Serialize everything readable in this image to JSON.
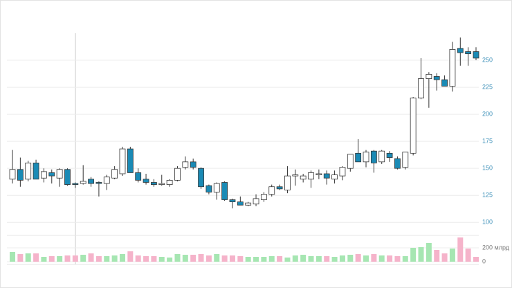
{
  "chart_data": {
    "type": "candlestick",
    "open": [
      140,
      149,
      140,
      155,
      141,
      146,
      141,
      149,
      136,
      136,
      140,
      137,
      136,
      141,
      145,
      168,
      146,
      140,
      137,
      135,
      135,
      139,
      151,
      156,
      150,
      134,
      128,
      137,
      121,
      119,
      116,
      117,
      121,
      126,
      133,
      130,
      143,
      140,
      140,
      144,
      145,
      140,
      143,
      150,
      164,
      156,
      166,
      156,
      164,
      159,
      151,
      164,
      215,
      233,
      235,
      232,
      226,
      261,
      258,
      258
    ],
    "high": [
      167,
      160,
      157,
      158,
      150,
      149,
      150,
      150,
      137,
      153,
      142,
      138,
      144,
      152,
      170,
      170,
      150,
      145,
      140,
      144,
      140,
      152,
      161,
      159,
      151,
      135,
      137,
      138,
      122,
      124,
      119,
      126,
      128,
      135,
      135,
      152,
      149,
      145,
      148,
      149,
      148,
      148,
      152,
      163,
      177,
      167,
      167,
      167,
      166,
      161,
      165,
      216,
      252,
      239,
      238,
      236,
      267,
      271,
      262,
      262
    ],
    "low": [
      136,
      133,
      138,
      141,
      137,
      136,
      133,
      134,
      132,
      135,
      133,
      124,
      130,
      140,
      143,
      146,
      137,
      135,
      133,
      134,
      133,
      138,
      149,
      149,
      131,
      126,
      121,
      120,
      113,
      116,
      115,
      115,
      119,
      124,
      130,
      127,
      134,
      137,
      132,
      140,
      135,
      136,
      139,
      147,
      156,
      151,
      146,
      154,
      156,
      149,
      149,
      162,
      214,
      206,
      222,
      226,
      221,
      245,
      245,
      250
    ],
    "close": [
      149,
      139,
      155,
      140,
      147,
      143,
      149,
      135,
      135,
      138,
      136,
      136,
      142,
      149,
      168,
      146,
      139,
      137,
      135,
      136,
      139,
      150,
      156,
      151,
      133,
      128,
      136,
      121,
      119,
      116,
      118,
      122,
      126,
      133,
      131,
      143,
      144,
      143,
      146,
      145,
      141,
      144,
      151,
      163,
      156,
      165,
      155,
      166,
      160,
      150,
      165,
      215,
      233,
      237,
      232,
      226,
      260,
      257,
      256,
      252
    ],
    "volume": [
      140,
      110,
      120,
      120,
      70,
      80,
      80,
      90,
      90,
      100,
      120,
      80,
      80,
      90,
      110,
      150,
      90,
      80,
      80,
      70,
      60,
      110,
      100,
      100,
      110,
      90,
      110,
      90,
      90,
      80,
      70,
      70,
      70,
      80,
      80,
      60,
      90,
      100,
      80,
      80,
      80,
      70,
      90,
      100,
      110,
      90,
      110,
      90,
      90,
      80,
      80,
      200,
      210,
      270,
      170,
      120,
      190,
      350,
      190,
      70
    ],
    "ylim": [
      88,
      275
    ],
    "yticks": [
      100,
      125,
      150,
      175,
      200,
      225,
      250
    ],
    "volume_lim": [
      0,
      380
    ],
    "volume_ticks": [
      0,
      {
        "value": 200,
        "label": "200 млрд"
      }
    ],
    "up_color": "#ffffff",
    "down_color": "#1a8ab5",
    "volume_up_color": "#a6e6b2",
    "volume_down_color": "#f5b3ca",
    "grid": true
  }
}
